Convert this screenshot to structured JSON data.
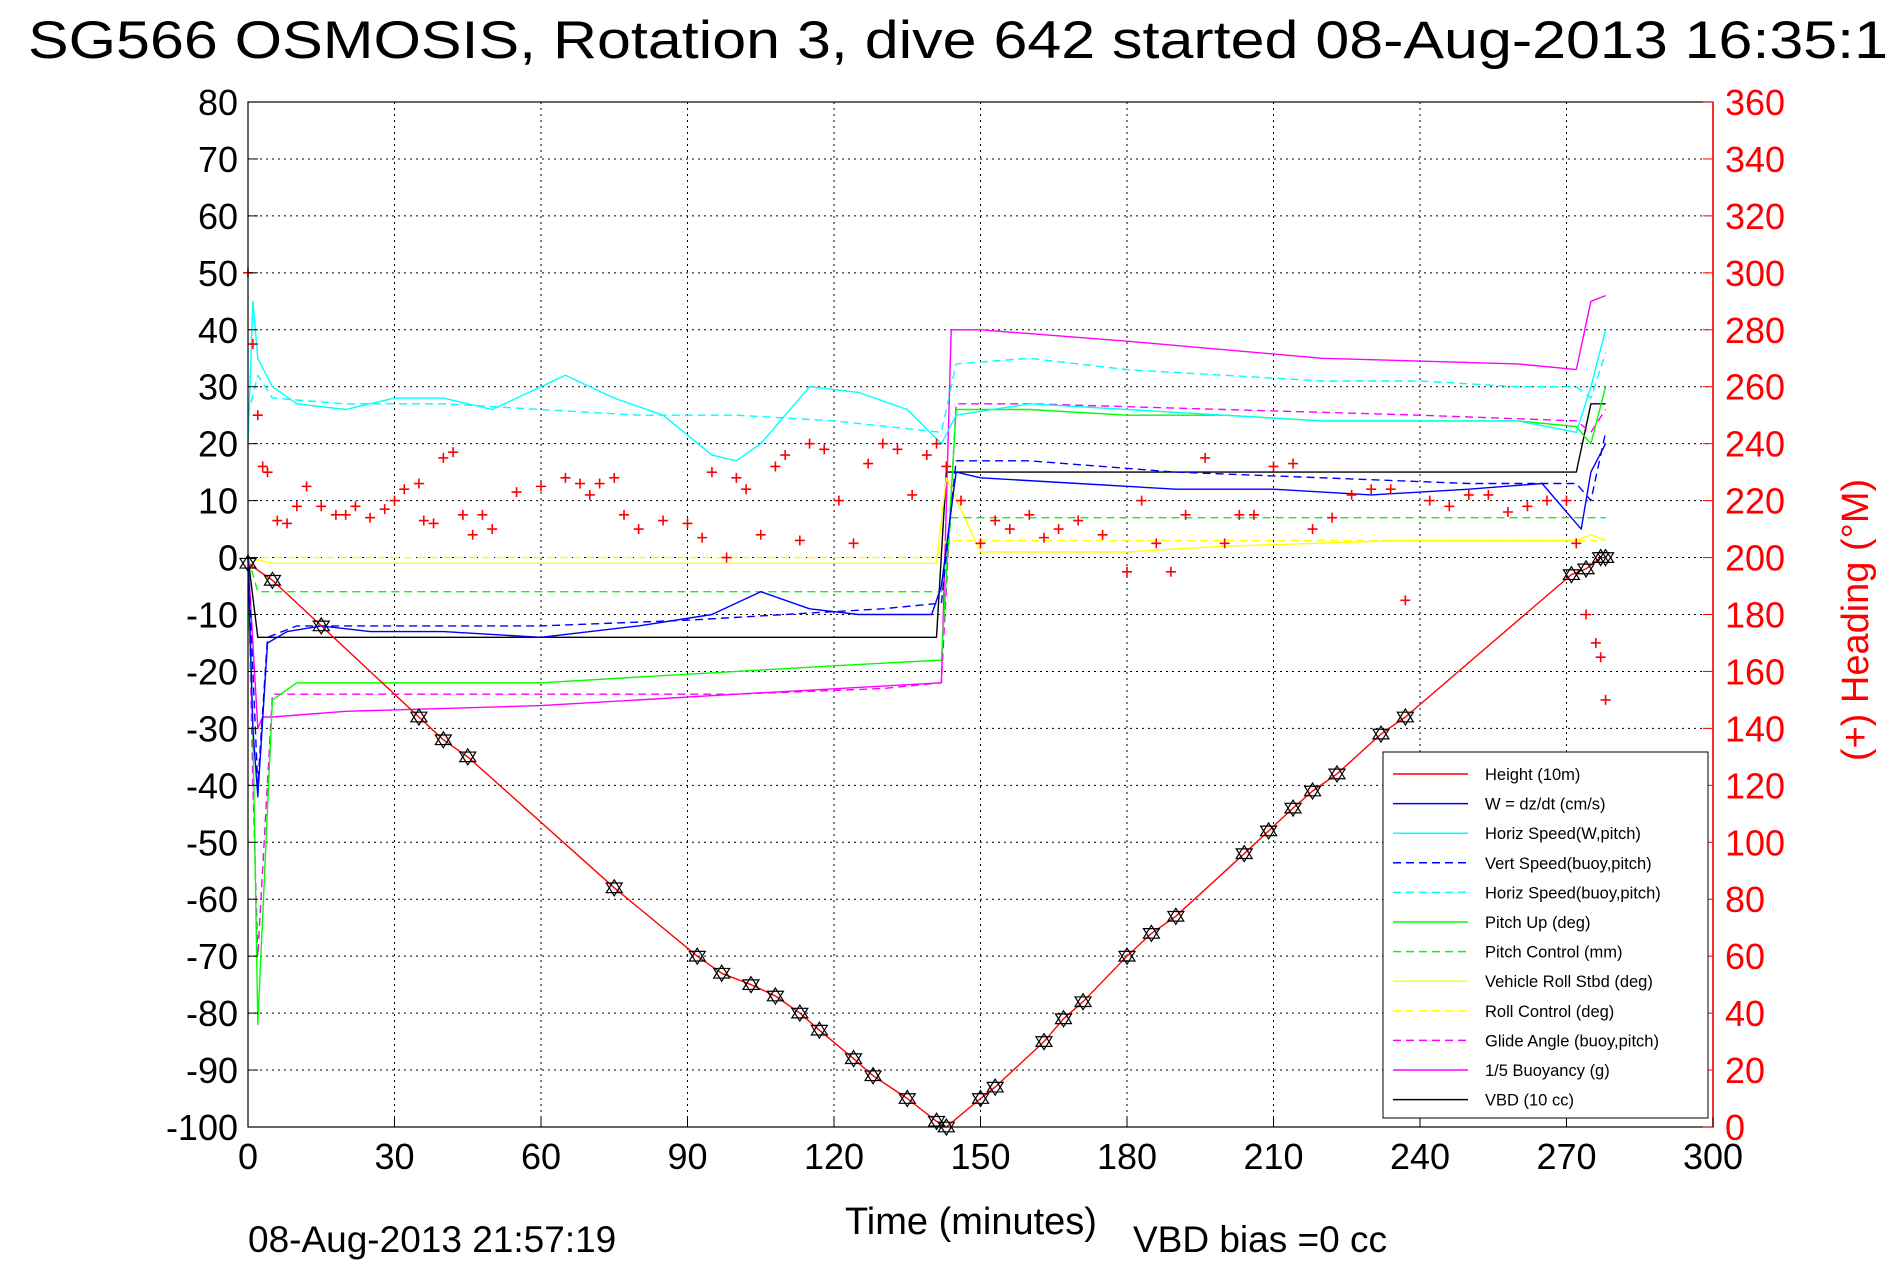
{
  "chart_data": {
    "type": "line",
    "title": "SG566 OSMOSIS, Rotation 3, dive 642 started 08-Aug-2013 16:35:1",
    "xlabel": "Time (minutes)",
    "ylabel": "",
    "y2label": "(+) Heading (°M)",
    "footer_left": "08-Aug-2013 21:57:19",
    "footer_right": "VBD bias =0 cc",
    "xlim": [
      0,
      300
    ],
    "ylim": [
      -100,
      80
    ],
    "y2lim": [
      0,
      360
    ],
    "x_ticks": [
      "0",
      "30",
      "60",
      "90",
      "120",
      "150",
      "180",
      "210",
      "240",
      "270",
      "300"
    ],
    "y_ticks": [
      "80",
      "70",
      "60",
      "50",
      "40",
      "30",
      "20",
      "10",
      "0",
      "-10",
      "-20",
      "-30",
      "-40",
      "-50",
      "-60",
      "-70",
      "-80",
      "-90",
      "-100"
    ],
    "y2_ticks": [
      "360",
      "340",
      "320",
      "300",
      "280",
      "260",
      "240",
      "220",
      "200",
      "180",
      "160",
      "140",
      "120",
      "100",
      "80",
      "60",
      "40",
      "20",
      "0"
    ],
    "grid": true,
    "legend_position": "lower-right",
    "series": [
      {
        "name": "Height (10m)",
        "color": "#ff0000",
        "dash": "solid",
        "x": [
          0,
          5,
          15,
          35,
          40,
          45,
          75,
          92,
          97,
          103,
          108,
          113,
          117,
          124,
          128,
          135,
          141,
          143,
          150,
          153,
          163,
          167,
          171,
          180,
          185,
          190,
          204,
          209,
          214,
          218,
          223,
          232,
          237,
          271,
          274,
          277,
          278
        ],
        "y": [
          -1,
          -4,
          -12,
          -28,
          -32,
          -35,
          -58,
          -70,
          -73,
          -75,
          -77,
          -80,
          -83,
          -88,
          -91,
          -95,
          -99,
          -100,
          -95,
          -93,
          -85,
          -81,
          -78,
          -70,
          -66,
          -63,
          -52,
          -48,
          -44,
          -41,
          -38,
          -31,
          -28,
          -3,
          -2,
          0,
          0
        ]
      },
      {
        "name": "W = dz/dt (cm/s)",
        "color": "#0000ff",
        "dash": "solid",
        "x": [
          0,
          1,
          2,
          4,
          8,
          15,
          25,
          40,
          60,
          80,
          95,
          100,
          105,
          115,
          125,
          140,
          142,
          145,
          150,
          170,
          190,
          210,
          230,
          250,
          265,
          273,
          275,
          278
        ],
        "y": [
          0,
          -30,
          -42,
          -15,
          -13,
          -12,
          -13,
          -13,
          -14,
          -12,
          -10,
          -8,
          -6,
          -9,
          -10,
          -10,
          -5,
          15,
          14,
          13,
          12,
          12,
          11,
          12,
          13,
          5,
          15,
          20
        ]
      },
      {
        "name": "Horiz Speed(W,pitch)",
        "color": "#00ffff",
        "dash": "solid",
        "x": [
          0,
          1,
          2,
          5,
          10,
          20,
          30,
          40,
          50,
          60,
          65,
          75,
          85,
          95,
          100,
          105,
          115,
          125,
          135,
          142,
          145,
          160,
          180,
          200,
          220,
          240,
          260,
          272,
          275,
          278
        ],
        "y": [
          20,
          45,
          35,
          30,
          27,
          26,
          28,
          28,
          26,
          30,
          32,
          28,
          25,
          18,
          17,
          20,
          30,
          29,
          26,
          20,
          25,
          27,
          26,
          25,
          24,
          24,
          24,
          22,
          30,
          40
        ]
      },
      {
        "name": "Vert Speed(buoy,pitch)",
        "color": "#0000ff",
        "dash": "dashed",
        "x": [
          0,
          1,
          2,
          4,
          10,
          30,
          60,
          90,
          110,
          130,
          142,
          145,
          160,
          190,
          220,
          250,
          272,
          275,
          278
        ],
        "y": [
          0,
          -20,
          -40,
          -14,
          -12,
          -12,
          -12,
          -11,
          -10,
          -9,
          -8,
          17,
          17,
          15,
          14,
          13,
          13,
          10,
          22
        ]
      },
      {
        "name": "Horiz Speed(buoy,pitch)",
        "color": "#00ffff",
        "dash": "dashed",
        "x": [
          0,
          2,
          5,
          20,
          40,
          60,
          80,
          100,
          120,
          142,
          145,
          160,
          180,
          200,
          220,
          240,
          260,
          272,
          275,
          278
        ],
        "y": [
          25,
          32,
          28,
          27,
          27,
          26,
          25,
          25,
          24,
          22,
          34,
          35,
          33,
          32,
          31,
          31,
          30,
          30,
          28,
          36
        ]
      },
      {
        "name": "Pitch Up (deg)",
        "color": "#00ff00",
        "dash": "solid",
        "x": [
          0,
          1,
          2,
          5,
          10,
          20,
          40,
          60,
          80,
          100,
          120,
          142,
          145,
          160,
          180,
          200,
          220,
          240,
          260,
          272,
          275,
          278
        ],
        "y": [
          -5,
          -30,
          -82,
          -25,
          -22,
          -22,
          -22,
          -22,
          -21,
          -20,
          -19,
          -18,
          26,
          26,
          25,
          25,
          24,
          24,
          24,
          23,
          20,
          30
        ]
      },
      {
        "name": "Pitch Control (mm)",
        "color": "#00ff00",
        "dash": "dashed",
        "x": [
          0,
          2,
          5,
          20,
          40,
          80,
          110,
          142,
          144,
          160,
          200,
          240,
          272,
          275,
          278
        ],
        "y": [
          0,
          -6,
          -6,
          -6,
          -6,
          -6,
          -6,
          -6,
          7,
          7,
          7,
          7,
          7,
          7,
          7
        ]
      },
      {
        "name": "Vehicle Roll Stbd (deg)",
        "color": "#ffff00",
        "dash": "solid",
        "x": [
          0,
          5,
          35,
          40,
          60,
          100,
          141,
          143,
          150,
          160,
          180,
          200,
          237,
          250,
          272,
          275,
          278
        ],
        "y": [
          0,
          -1,
          -1,
          -1,
          -1,
          -1,
          -1,
          14,
          1,
          1,
          1,
          2,
          3,
          3,
          3,
          4,
          3
        ]
      },
      {
        "name": "Roll Control (deg)",
        "color": "#ffff00",
        "dash": "dashed",
        "x": [
          0,
          5,
          40,
          80,
          141,
          143,
          180,
          220,
          260,
          278
        ],
        "y": [
          0,
          0,
          0,
          0,
          0,
          3,
          3,
          3,
          3,
          3
        ]
      },
      {
        "name": "Glide Angle (buoy,pitch)",
        "color": "#ff00ff",
        "dash": "dashed",
        "x": [
          0,
          1,
          2,
          5,
          20,
          60,
          100,
          130,
          142,
          145,
          160,
          200,
          240,
          272,
          275,
          278
        ],
        "y": [
          0,
          -40,
          -70,
          -24,
          -24,
          -24,
          -24,
          -23,
          -22,
          27,
          27,
          26,
          25,
          24,
          22,
          26
        ]
      },
      {
        "name": "1/5 Buoyancy (g)",
        "color": "#ff00ff",
        "dash": "solid",
        "x": [
          0,
          2,
          3,
          5,
          20,
          60,
          100,
          142,
          144,
          150,
          180,
          220,
          260,
          272,
          275,
          278
        ],
        "y": [
          0,
          -30,
          -28,
          -28,
          -27,
          -26,
          -24,
          -22,
          40,
          40,
          38,
          35,
          34,
          33,
          45,
          46
        ]
      },
      {
        "name": "VBD (10 cc)",
        "color": "#000000",
        "dash": "solid",
        "x": [
          0,
          2,
          5,
          20,
          40,
          80,
          120,
          141,
          143,
          146,
          200,
          240,
          272,
          275,
          278
        ],
        "y": [
          0,
          -14,
          -14,
          -14,
          -14,
          -14,
          -14,
          -14,
          15,
          15,
          15,
          15,
          15,
          27,
          27
        ]
      }
    ],
    "heading": {
      "name": "(+) Heading",
      "color": "#ff0000",
      "marker": "+",
      "axis": "right",
      "x": [
        0,
        1,
        2,
        3,
        4,
        6,
        8,
        10,
        12,
        15,
        18,
        20,
        22,
        25,
        28,
        30,
        32,
        35,
        36,
        38,
        40,
        42,
        44,
        46,
        48,
        50,
        55,
        60,
        65,
        68,
        70,
        72,
        75,
        77,
        80,
        85,
        90,
        93,
        95,
        98,
        100,
        102,
        105,
        108,
        110,
        113,
        115,
        118,
        121,
        124,
        127,
        130,
        133,
        136,
        139,
        141,
        143,
        146,
        150,
        153,
        156,
        160,
        163,
        166,
        170,
        175,
        180,
        183,
        186,
        189,
        192,
        196,
        200,
        203,
        206,
        210,
        214,
        218,
        222,
        226,
        230,
        234,
        237,
        242,
        246,
        250,
        254,
        258,
        262,
        266,
        270,
        272,
        274,
        276,
        277,
        278
      ],
      "y": [
        300,
        275,
        250,
        232,
        230,
        213,
        212,
        218,
        225,
        218,
        215,
        215,
        218,
        214,
        217,
        220,
        224,
        226,
        213,
        212,
        235,
        237,
        215,
        208,
        215,
        210,
        223,
        225,
        228,
        226,
        222,
        226,
        228,
        215,
        210,
        213,
        212,
        207,
        230,
        200,
        228,
        224,
        208,
        232,
        236,
        206,
        240,
        238,
        220,
        205,
        233,
        240,
        238,
        222,
        236,
        240,
        232,
        220,
        205,
        213,
        210,
        215,
        207,
        210,
        213,
        208,
        195,
        220,
        205,
        195,
        215,
        235,
        205,
        215,
        215,
        232,
        233,
        210,
        214,
        222,
        224,
        224,
        185,
        220,
        218,
        222,
        222,
        216,
        218,
        220,
        220,
        205,
        180,
        170,
        165,
        150
      ]
    }
  }
}
